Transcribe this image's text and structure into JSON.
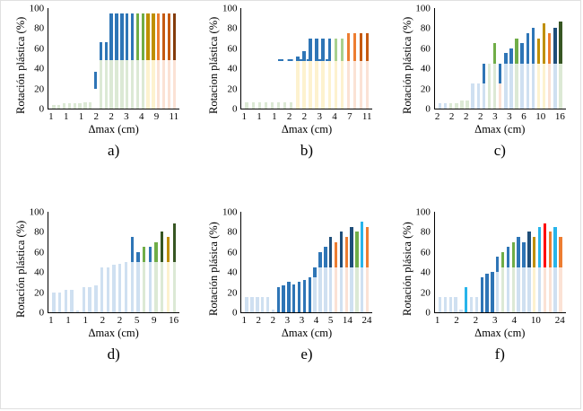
{
  "figure": {
    "description": "Six stacked bar charts of plastic rotation percentage vs maximum displacement"
  },
  "palette": {
    "lg": "#dce9d5",
    "lb": "#cfe0f1",
    "ly": "#fdf2cf",
    "lo": "#fbe2d5",
    "bl": "#2e75b6",
    "db": "#1f4e79",
    "gr": "#70ad47",
    "dg": "#375623",
    "ol": "#bf8f00",
    "og": "#a9d18e",
    "or": "#ed7d31",
    "do": "#c55a11",
    "br": "#843c0c",
    "cy": "#27b4ea",
    "rd": "#ff0000",
    "tr": "transparent"
  },
  "chart_data": [
    {
      "id": "a",
      "type": "bar",
      "label": "a)",
      "ylabel": "Rotación plástica (%)",
      "xlabel": "Δmax (cm)",
      "ylim": [
        0,
        100
      ],
      "yticks": [
        0,
        20,
        40,
        60,
        80,
        100
      ],
      "xticks": [
        "1",
        "1",
        "1",
        "2",
        "2",
        "3",
        "4",
        "9",
        "11"
      ],
      "dash": null,
      "bars": [
        [
          [
            4,
            "lg"
          ]
        ],
        [
          [
            4,
            "lg"
          ]
        ],
        [
          [
            5,
            "lg"
          ]
        ],
        [
          [
            5,
            "lg"
          ]
        ],
        [
          [
            5,
            "lg"
          ]
        ],
        [
          [
            5,
            "lg"
          ]
        ],
        [
          [
            6,
            "lg"
          ]
        ],
        [
          [
            6,
            "lg"
          ]
        ],
        [
          [
            20,
            "tr"
          ],
          [
            17,
            "bl"
          ]
        ],
        [
          [
            48,
            "lg"
          ],
          [
            18,
            "bl"
          ]
        ],
        [
          [
            48,
            "lg"
          ],
          [
            18,
            "bl"
          ]
        ],
        [
          [
            48,
            "lg"
          ],
          [
            47,
            "bl"
          ]
        ],
        [
          [
            48,
            "lg"
          ],
          [
            47,
            "bl"
          ]
        ],
        [
          [
            48,
            "lg"
          ],
          [
            47,
            "bl"
          ]
        ],
        [
          [
            48,
            "lg"
          ],
          [
            47,
            "bl"
          ]
        ],
        [
          [
            48,
            "lg"
          ],
          [
            47,
            "bl"
          ]
        ],
        [
          [
            48,
            "lg"
          ],
          [
            47,
            "gr"
          ]
        ],
        [
          [
            48,
            "lg"
          ],
          [
            47,
            "gr"
          ]
        ],
        [
          [
            48,
            "ly"
          ],
          [
            47,
            "ol"
          ]
        ],
        [
          [
            48,
            "ly"
          ],
          [
            47,
            "ol"
          ]
        ],
        [
          [
            48,
            "lo"
          ],
          [
            47,
            "or"
          ]
        ],
        [
          [
            48,
            "lo"
          ],
          [
            47,
            "do"
          ]
        ],
        [
          [
            48,
            "lo"
          ],
          [
            47,
            "do"
          ]
        ],
        [
          [
            48,
            "lo"
          ],
          [
            47,
            "br"
          ]
        ]
      ]
    },
    {
      "id": "b",
      "type": "bar",
      "label": "b)",
      "ylabel": "Rotacion plástica (%)",
      "xlabel": "Δmax (cm)",
      "ylim": [
        0,
        100
      ],
      "yticks": [
        0,
        20,
        40,
        60,
        80,
        100
      ],
      "xticks": [
        "1",
        "1",
        "1",
        "2",
        "2",
        "3",
        "4",
        "7",
        "11"
      ],
      "dash": {
        "y": 47,
        "left": "28%",
        "width": "40%"
      },
      "bars": [
        [
          [
            6,
            "lg"
          ]
        ],
        [
          [
            6,
            "lg"
          ]
        ],
        [
          [
            6,
            "lg"
          ]
        ],
        [
          [
            6,
            "lg"
          ]
        ],
        [
          [
            6,
            "lg"
          ]
        ],
        [
          [
            6,
            "lg"
          ]
        ],
        [
          [
            6,
            "lg"
          ]
        ],
        [
          [
            6,
            "lg"
          ]
        ],
        [
          [
            47,
            "ly"
          ],
          [
            5,
            "bl"
          ]
        ],
        [
          [
            47,
            "ly"
          ],
          [
            10,
            "bl"
          ]
        ],
        [
          [
            47,
            "ly"
          ],
          [
            23,
            "bl"
          ]
        ],
        [
          [
            47,
            "ly"
          ],
          [
            23,
            "bl"
          ]
        ],
        [
          [
            47,
            "ly"
          ],
          [
            23,
            "bl"
          ]
        ],
        [
          [
            47,
            "ly"
          ],
          [
            23,
            "bl"
          ]
        ],
        [
          [
            47,
            "ly"
          ],
          [
            23,
            "og"
          ]
        ],
        [
          [
            47,
            "ly"
          ],
          [
            23,
            "og"
          ]
        ],
        [
          [
            47,
            "lo"
          ],
          [
            28,
            "or"
          ]
        ],
        [
          [
            47,
            "lo"
          ],
          [
            28,
            "or"
          ]
        ],
        [
          [
            47,
            "lo"
          ],
          [
            28,
            "do"
          ]
        ],
        [
          [
            47,
            "lo"
          ],
          [
            28,
            "do"
          ]
        ]
      ]
    },
    {
      "id": "c",
      "type": "bar",
      "label": "c)",
      "ylabel": "Rotación plástica (%)",
      "xlabel": "Δmax (cm)",
      "ylim": [
        0,
        100
      ],
      "yticks": [
        0,
        20,
        40,
        60,
        80,
        100
      ],
      "xticks": [
        "2",
        "2",
        "2",
        "2",
        "3",
        "3",
        "6",
        "10",
        "16"
      ],
      "dash": null,
      "bars": [
        [
          [
            5,
            "lb"
          ]
        ],
        [
          [
            5,
            "lb"
          ]
        ],
        [
          [
            5,
            "lg"
          ]
        ],
        [
          [
            5,
            "lg"
          ]
        ],
        [
          [
            8,
            "lg"
          ]
        ],
        [
          [
            8,
            "lg"
          ]
        ],
        [
          [
            25,
            "lb"
          ]
        ],
        [
          [
            25,
            "lb"
          ]
        ],
        [
          [
            25,
            "lb"
          ],
          [
            20,
            "bl"
          ]
        ],
        [
          [
            45,
            "lg"
          ]
        ],
        [
          [
            45,
            "lg"
          ],
          [
            20,
            "gr"
          ]
        ],
        [
          [
            25,
            "lo"
          ],
          [
            20,
            "bl"
          ]
        ],
        [
          [
            45,
            "lb"
          ],
          [
            10,
            "bl"
          ]
        ],
        [
          [
            45,
            "lb"
          ],
          [
            15,
            "bl"
          ]
        ],
        [
          [
            45,
            "lg"
          ],
          [
            25,
            "gr"
          ]
        ],
        [
          [
            45,
            "lb"
          ],
          [
            20,
            "bl"
          ]
        ],
        [
          [
            45,
            "lb"
          ],
          [
            30,
            "bl"
          ]
        ],
        [
          [
            45,
            "lb"
          ],
          [
            35,
            "bl"
          ]
        ],
        [
          [
            45,
            "ly"
          ],
          [
            25,
            "ol"
          ]
        ],
        [
          [
            45,
            "ly"
          ],
          [
            40,
            "ol"
          ]
        ],
        [
          [
            45,
            "lo"
          ],
          [
            30,
            "or"
          ]
        ],
        [
          [
            45,
            "lb"
          ],
          [
            35,
            "db"
          ]
        ],
        [
          [
            45,
            "lg"
          ],
          [
            42,
            "dg"
          ]
        ]
      ]
    },
    {
      "id": "d",
      "type": "bar",
      "label": "d)",
      "ylabel": "Rotación plástica (%)",
      "xlabel": "Δmax (cm)",
      "ylim": [
        0,
        100
      ],
      "yticks": [
        0,
        20,
        40,
        60,
        80,
        100
      ],
      "xticks": [
        "1",
        "1",
        "1",
        "2",
        "2",
        "5",
        "9",
        "16"
      ],
      "dash": null,
      "bars": [
        [
          [
            20,
            "lb"
          ]
        ],
        [
          [
            20,
            "lb"
          ]
        ],
        [
          [
            22,
            "lb"
          ]
        ],
        [
          [
            22,
            "lb"
          ]
        ],
        [
          [
            2,
            "lb"
          ]
        ],
        [
          [
            25,
            "lb"
          ]
        ],
        [
          [
            25,
            "lb"
          ]
        ],
        [
          [
            27,
            "lb"
          ]
        ],
        [
          [
            45,
            "lb"
          ]
        ],
        [
          [
            45,
            "lb"
          ]
        ],
        [
          [
            47,
            "lb"
          ]
        ],
        [
          [
            48,
            "lb"
          ]
        ],
        [
          [
            50,
            "lb"
          ]
        ],
        [
          [
            50,
            "lb"
          ],
          [
            25,
            "bl"
          ]
        ],
        [
          [
            50,
            "lb"
          ],
          [
            10,
            "bl"
          ]
        ],
        [
          [
            50,
            "lg"
          ],
          [
            15,
            "gr"
          ]
        ],
        [
          [
            50,
            "lb"
          ],
          [
            15,
            "bl"
          ]
        ],
        [
          [
            50,
            "lg"
          ],
          [
            20,
            "gr"
          ]
        ],
        [
          [
            50,
            "lg"
          ],
          [
            30,
            "dg"
          ]
        ],
        [
          [
            50,
            "ly"
          ],
          [
            25,
            "ol"
          ]
        ],
        [
          [
            50,
            "lg"
          ],
          [
            38,
            "dg"
          ]
        ]
      ]
    },
    {
      "id": "e",
      "type": "bar",
      "label": "e)",
      "ylabel": "Rotación plásica (%)",
      "xlabel": "Δmax (cm)",
      "ylim": [
        0,
        100
      ],
      "yticks": [
        0,
        20,
        40,
        60,
        80,
        100
      ],
      "xticks": [
        "1",
        "2",
        "2",
        "3",
        "3",
        "4",
        "5",
        "14",
        "24"
      ],
      "dash": null,
      "bars": [
        [
          [
            15,
            "lb"
          ]
        ],
        [
          [
            15,
            "lb"
          ]
        ],
        [
          [
            15,
            "lb"
          ]
        ],
        [
          [
            15,
            "lb"
          ]
        ],
        [
          [
            15,
            "lb"
          ]
        ],
        [
          [
            3,
            "lb"
          ]
        ],
        [
          [
            25,
            "bl"
          ]
        ],
        [
          [
            27,
            "bl"
          ]
        ],
        [
          [
            30,
            "bl"
          ]
        ],
        [
          [
            28,
            "bl"
          ]
        ],
        [
          [
            30,
            "bl"
          ]
        ],
        [
          [
            32,
            "bl"
          ]
        ],
        [
          [
            35,
            "bl"
          ]
        ],
        [
          [
            35,
            "lb"
          ],
          [
            10,
            "bl"
          ]
        ],
        [
          [
            45,
            "lb"
          ],
          [
            15,
            "bl"
          ]
        ],
        [
          [
            45,
            "lb"
          ],
          [
            20,
            "bl"
          ]
        ],
        [
          [
            45,
            "lb"
          ],
          [
            30,
            "db"
          ]
        ],
        [
          [
            45,
            "lo"
          ],
          [
            25,
            "or"
          ]
        ],
        [
          [
            45,
            "lb"
          ],
          [
            35,
            "db"
          ]
        ],
        [
          [
            45,
            "lo"
          ],
          [
            30,
            "or"
          ]
        ],
        [
          [
            45,
            "lb"
          ],
          [
            40,
            "db"
          ]
        ],
        [
          [
            45,
            "lg"
          ],
          [
            35,
            "gr"
          ]
        ],
        [
          [
            45,
            "lb"
          ],
          [
            45,
            "cy"
          ]
        ],
        [
          [
            45,
            "lo"
          ],
          [
            40,
            "or"
          ]
        ]
      ]
    },
    {
      "id": "f",
      "type": "bar",
      "label": "f)",
      "ylabel": "Rotación plásica (%)",
      "xlabel": "Δmax (cm)",
      "ylim": [
        0,
        100
      ],
      "yticks": [
        0,
        20,
        40,
        60,
        80,
        100
      ],
      "xticks": [
        "1",
        "2",
        "2",
        "3",
        "4",
        "10",
        "24"
      ],
      "dash": null,
      "bars": [
        [
          [
            15,
            "lb"
          ]
        ],
        [
          [
            15,
            "lb"
          ]
        ],
        [
          [
            15,
            "lb"
          ]
        ],
        [
          [
            15,
            "lb"
          ]
        ],
        [
          [
            3,
            "lb"
          ]
        ],
        [
          [
            25,
            "cy"
          ]
        ],
        [
          [
            15,
            "lb"
          ]
        ],
        [
          [
            15,
            "lb"
          ]
        ],
        [
          [
            35,
            "bl"
          ]
        ],
        [
          [
            38,
            "bl"
          ]
        ],
        [
          [
            40,
            "bl"
          ]
        ],
        [
          [
            40,
            "lb"
          ],
          [
            15,
            "bl"
          ]
        ],
        [
          [
            45,
            "lg"
          ],
          [
            15,
            "gr"
          ]
        ],
        [
          [
            45,
            "lb"
          ],
          [
            20,
            "bl"
          ]
        ],
        [
          [
            45,
            "lg"
          ],
          [
            25,
            "gr"
          ]
        ],
        [
          [
            45,
            "lb"
          ],
          [
            30,
            "bl"
          ]
        ],
        [
          [
            45,
            "lb"
          ],
          [
            25,
            "bl"
          ]
        ],
        [
          [
            45,
            "lb"
          ],
          [
            35,
            "db"
          ]
        ],
        [
          [
            45,
            "ly"
          ],
          [
            30,
            "ol"
          ]
        ],
        [
          [
            45,
            "lb"
          ],
          [
            40,
            "cy"
          ]
        ],
        [
          [
            45,
            "lo"
          ],
          [
            43,
            "rd"
          ]
        ],
        [
          [
            45,
            "lo"
          ],
          [
            35,
            "or"
          ]
        ],
        [
          [
            45,
            "lb"
          ],
          [
            40,
            "cy"
          ]
        ],
        [
          [
            45,
            "lo"
          ],
          [
            30,
            "or"
          ]
        ]
      ]
    }
  ]
}
